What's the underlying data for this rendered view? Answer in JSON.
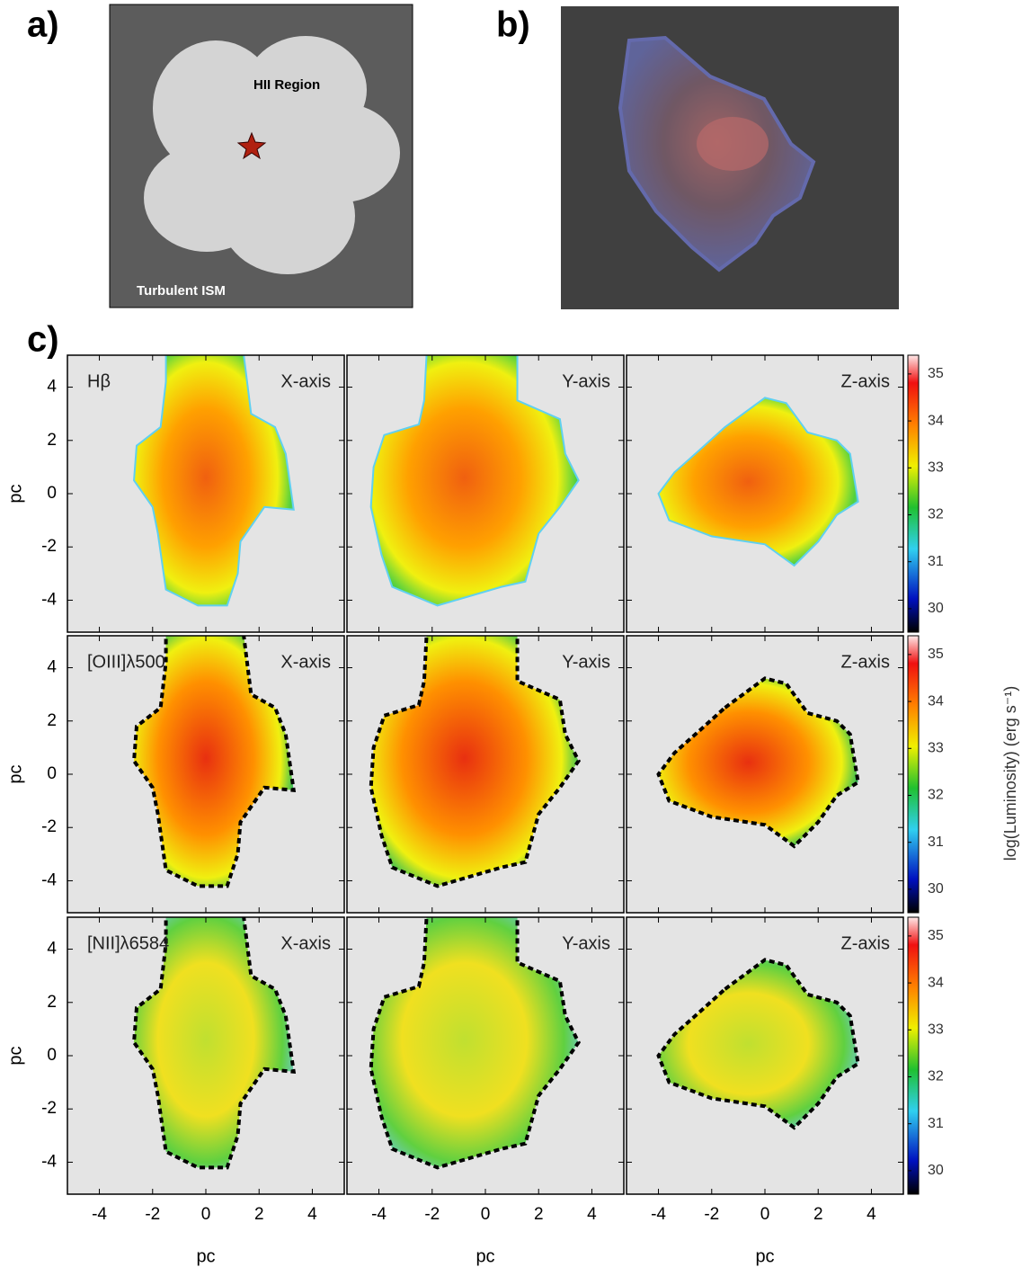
{
  "panels": {
    "a": {
      "label": "a)",
      "region_label": "HII Region",
      "medium_label": "Turbulent ISM"
    },
    "b": {
      "label": "b)"
    }
  },
  "chart_data": {
    "type": "heatmap-grid",
    "label": "c)",
    "rows": [
      "Hβ",
      "[OIII]λ500",
      "[NII]λ6584"
    ],
    "columns": [
      "X-axis",
      "Y-axis",
      "Z-axis"
    ],
    "xlabel": "pc",
    "ylabel": "pc",
    "xlim": [
      -5.2,
      5.2
    ],
    "ylim": [
      -5.2,
      5.2
    ],
    "xticks": [
      -4,
      -2,
      0,
      2,
      4
    ],
    "yticks": [
      -4,
      -2,
      0,
      2,
      4
    ],
    "colorbar": {
      "label": "log(Luminosity) (erg s⁻¹)",
      "lim": [
        29.5,
        35.4
      ],
      "ticks": [
        30,
        31,
        32,
        33,
        34,
        35
      ]
    }
  }
}
